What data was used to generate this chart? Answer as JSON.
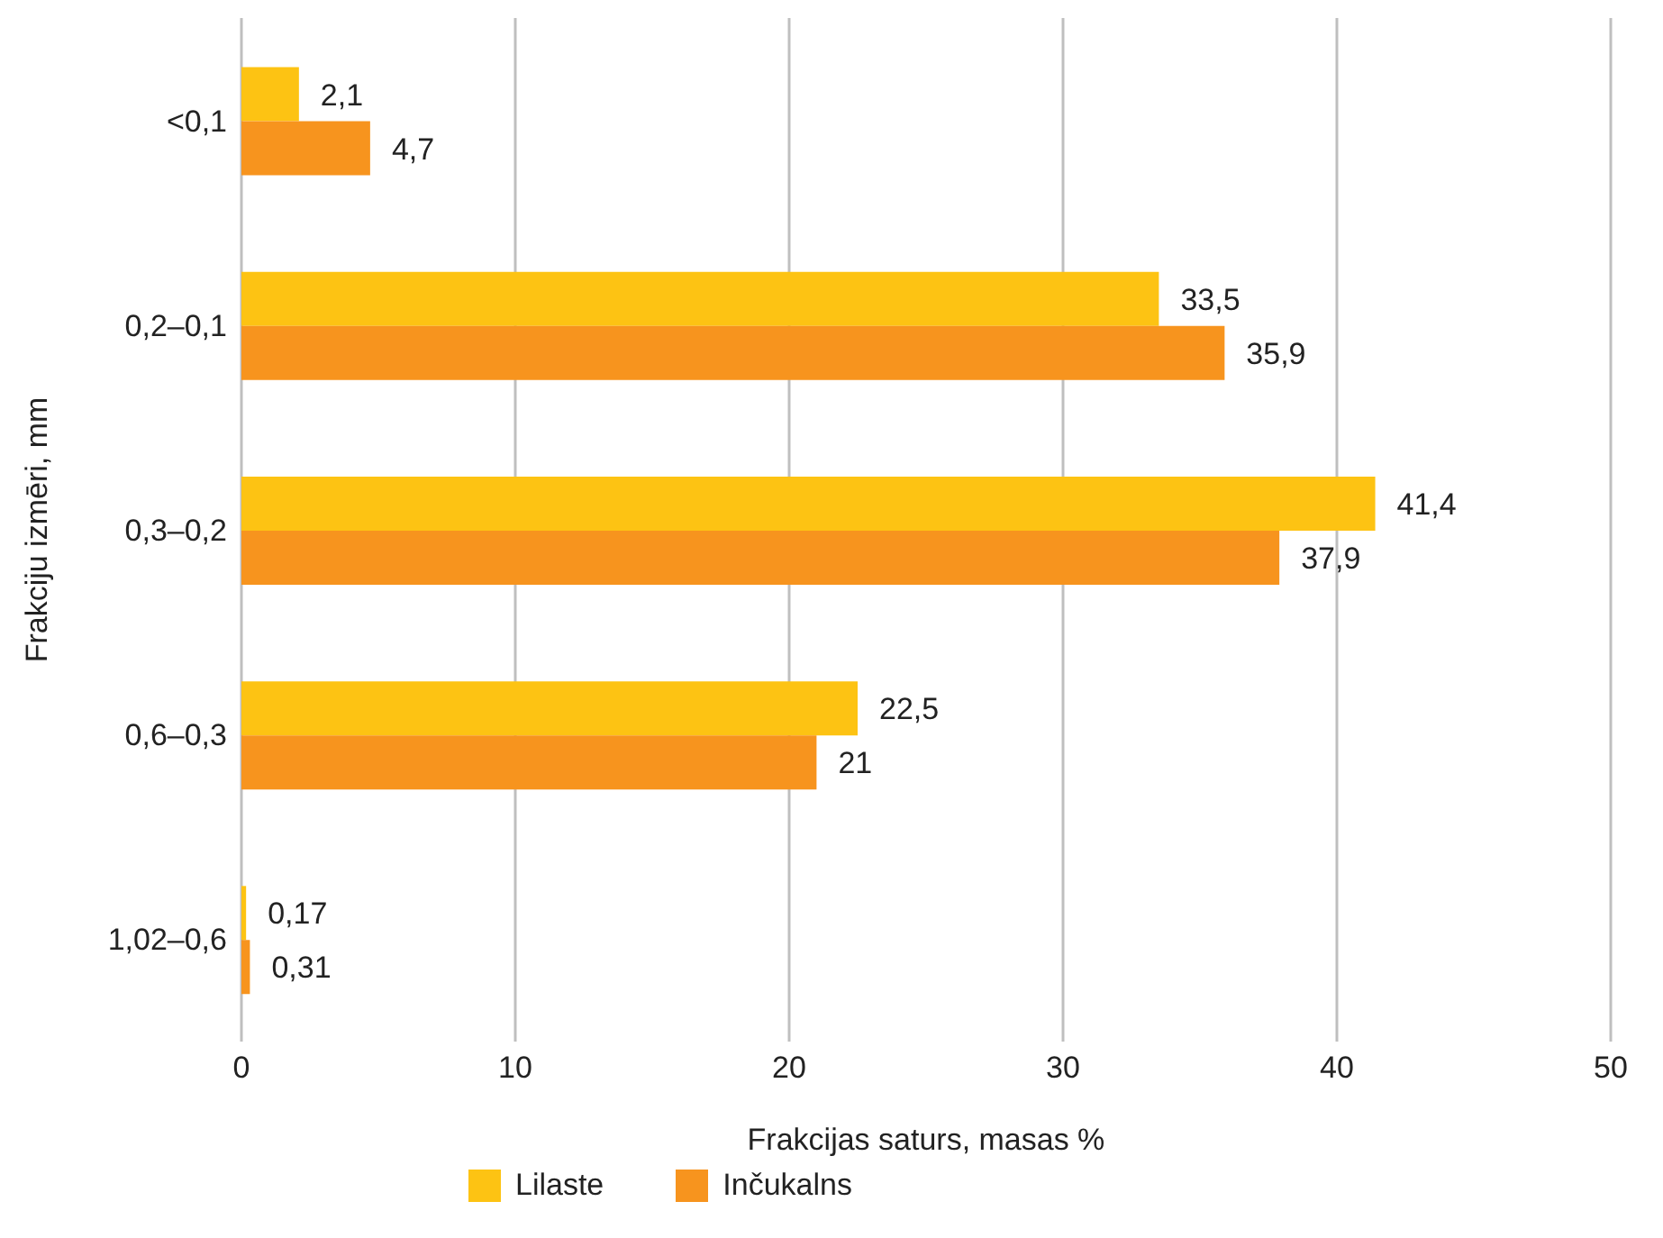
{
  "chart_data": {
    "type": "bar",
    "orientation": "horizontal",
    "xlabel": "Frakcijas saturs, masas %",
    "ylabel": "Frakciju izmēri, mm",
    "categories": [
      "<0,1",
      "0,2–0,1",
      "0,3–0,2",
      "0,6–0,3",
      "1,02–0,6"
    ],
    "series": [
      {
        "name": "Lilaste",
        "color": "#fdc313",
        "values": [
          2.1,
          33.5,
          41.4,
          22.5,
          0.17
        ],
        "value_labels": [
          "2,1",
          "33,5",
          "41,4",
          "22,5",
          "0,17"
        ]
      },
      {
        "name": "Inčukalns",
        "color": "#f7941e",
        "values": [
          4.7,
          35.9,
          37.9,
          21,
          0.31
        ],
        "value_labels": [
          "4,7",
          "35,9",
          "37,9",
          "21",
          "0,31"
        ]
      }
    ],
    "xlim": [
      0,
      50
    ],
    "xticks": [
      0,
      10,
      20,
      30,
      40,
      50
    ],
    "grid": "x",
    "legend": "bottom left"
  }
}
